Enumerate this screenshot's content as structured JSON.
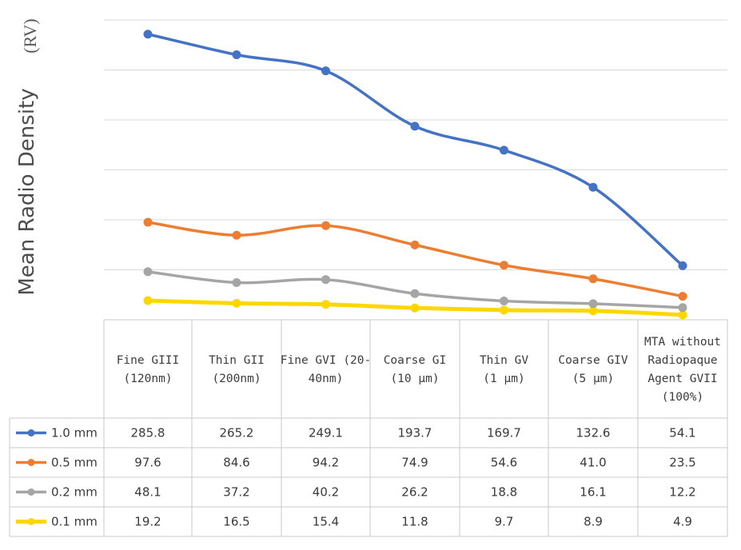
{
  "chart_data": {
    "type": "line",
    "title": "",
    "ylabel": "Mean Radio Density",
    "ylabel_unit": "(RV)",
    "xlabel": "",
    "ylim": [
      0,
      300
    ],
    "grid": true,
    "legend": "left, inside data table",
    "categories": [
      [
        "Fine GIII",
        "(120nm)"
      ],
      [
        "Thin GII",
        "(200nm)"
      ],
      [
        "Fine GVI (20-",
        "40nm)"
      ],
      [
        "Coarse GI",
        "(10 µm)"
      ],
      [
        "Thin GV",
        "(1 µm)"
      ],
      [
        "Coarse GIV",
        "(5 µm)"
      ],
      [
        "MTA without",
        "Radiopaque",
        "Agent GVII",
        "(100%)"
      ]
    ],
    "series": [
      {
        "name": "1.0 mm",
        "color": "#4472c4",
        "values": [
          285.8,
          265.2,
          249.1,
          193.7,
          169.7,
          132.6,
          54.1
        ],
        "labels": [
          "285.8",
          "265.2",
          "249.1",
          "193.7",
          "169.7",
          "132.6",
          "54.1"
        ]
      },
      {
        "name": "0.5 mm",
        "color": "#ed7d31",
        "values": [
          97.6,
          84.6,
          94.2,
          74.9,
          54.6,
          41.0,
          23.5
        ],
        "labels": [
          "97.6",
          "84.6",
          "94.2",
          "74.9",
          "54.6",
          "41.0",
          "23.5"
        ]
      },
      {
        "name": "0.2 mm",
        "color": "#a5a5a5",
        "values": [
          48.1,
          37.2,
          40.2,
          26.2,
          18.8,
          16.1,
          12.2
        ],
        "labels": [
          "48.1",
          "37.2",
          "40.2",
          "26.2",
          "18.8",
          "16.1",
          "12.2"
        ]
      },
      {
        "name": "0.1 mm",
        "color": "#ffd700",
        "values": [
          19.2,
          16.5,
          15.4,
          11.8,
          9.7,
          8.9,
          4.9
        ],
        "labels": [
          "19.2",
          "16.5",
          "15.4",
          "11.8",
          "9.7",
          "8.9",
          "4.9"
        ]
      }
    ]
  }
}
